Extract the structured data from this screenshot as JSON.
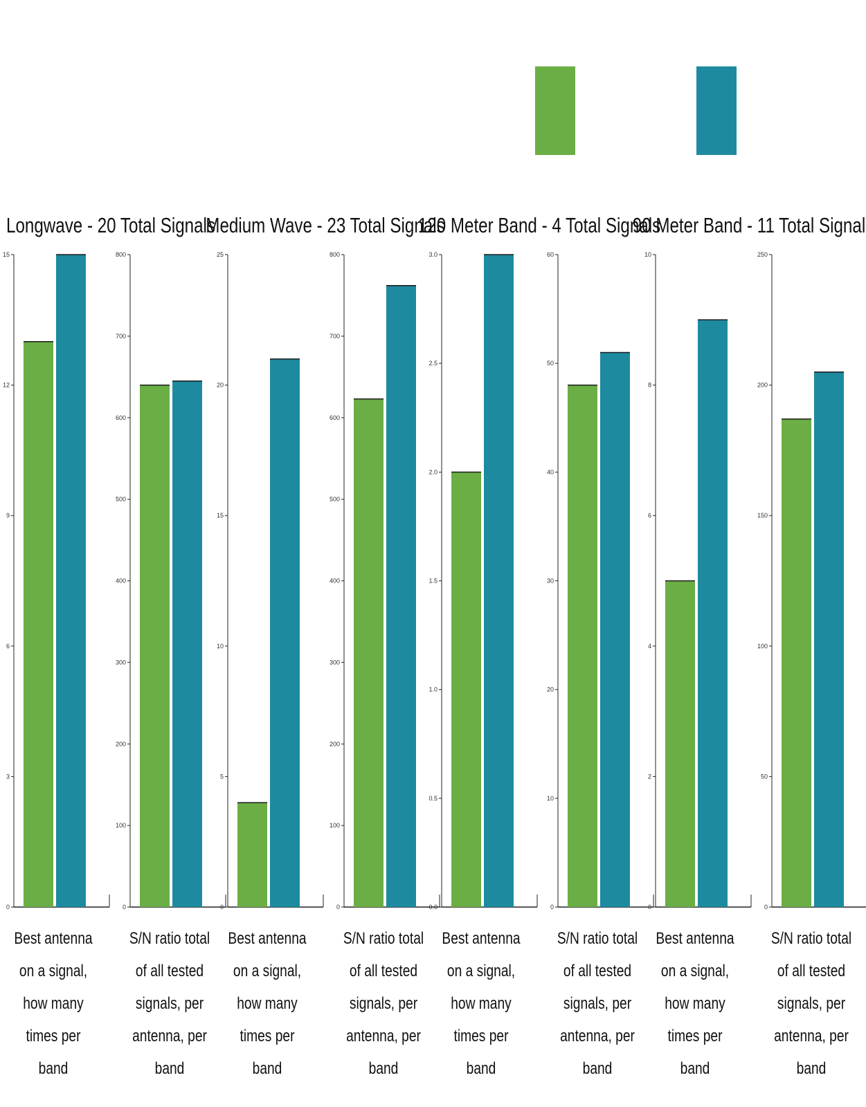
{
  "colors": {
    "series_a": "#6aae45",
    "series_b": "#1e8aa0",
    "axis": "#222222"
  },
  "legend": {
    "items": [
      {
        "color": "#6aae45"
      },
      {
        "color": "#1e8aa0"
      }
    ]
  },
  "groups": [
    {
      "title": "Longwave - 20 Total Signals"
    },
    {
      "title": "Medium Wave - 23 Total Signals"
    },
    {
      "title": "120 Meter Band - 4 Total Signals"
    },
    {
      "title": "90 Meter Band - 11 Total Signals"
    }
  ],
  "chart_data": [
    {
      "type": "bar",
      "group": "Longwave - 20 Total Signals",
      "xlabel": "Best antenna on a signal, how many times per band",
      "ylim": [
        0,
        15
      ],
      "yticks": [
        "0",
        "3",
        "6",
        "9",
        "12",
        "15"
      ],
      "values": [
        13,
        15
      ]
    },
    {
      "type": "bar",
      "group": "Longwave - 20 Total Signals",
      "xlabel": "S/N ratio total of all tested signals, per antenna, per band",
      "ylim": [
        0,
        800
      ],
      "yticks": [
        "0",
        "100",
        "200",
        "300",
        "400",
        "500",
        "600",
        "700",
        "800"
      ],
      "values": [
        640,
        645
      ]
    },
    {
      "type": "bar",
      "group": "Medium Wave - 23 Total Signals",
      "xlabel": "Best antenna on a signal, how many times per band",
      "ylim": [
        0,
        25
      ],
      "yticks": [
        "0",
        "5",
        "10",
        "15",
        "20",
        "25"
      ],
      "values": [
        4,
        21
      ]
    },
    {
      "type": "bar",
      "group": "Medium Wave - 23 Total Signals",
      "xlabel": "S/N ratio total of all tested signals, per antenna, per band",
      "ylim": [
        0,
        800
      ],
      "yticks": [
        "0",
        "100",
        "200",
        "300",
        "400",
        "500",
        "600",
        "700",
        "800"
      ],
      "values": [
        623,
        762
      ]
    },
    {
      "type": "bar",
      "group": "120 Meter Band - 4 Total Signals",
      "xlabel": "Best antenna on a signal, how many times per band",
      "ylim": [
        0,
        3
      ],
      "yticks": [
        "0.0",
        "0.5",
        "1.0",
        "1.5",
        "2.0",
        "2.5",
        "3.0"
      ],
      "values": [
        2,
        3
      ]
    },
    {
      "type": "bar",
      "group": "120 Meter Band - 4 Total Signals",
      "xlabel": "S/N ratio total of all tested signals, per antenna, per band",
      "ylim": [
        0,
        60
      ],
      "yticks": [
        "0",
        "10",
        "20",
        "30",
        "40",
        "50",
        "60"
      ],
      "values": [
        48,
        51
      ]
    },
    {
      "type": "bar",
      "group": "90 Meter Band - 11 Total Signals",
      "xlabel": "Best antenna on a signal, how many times per band",
      "ylim": [
        0,
        10
      ],
      "yticks": [
        "0",
        "2",
        "4",
        "6",
        "8",
        "10"
      ],
      "values": [
        5,
        9
      ]
    },
    {
      "type": "bar",
      "group": "90 Meter Band - 11 Total Signals",
      "xlabel": "S/N ratio total of all tested signals, per antenna, per band",
      "ylim": [
        0,
        250
      ],
      "yticks": [
        "0",
        "50",
        "100",
        "150",
        "200",
        "250"
      ],
      "values": [
        187,
        205
      ]
    }
  ]
}
